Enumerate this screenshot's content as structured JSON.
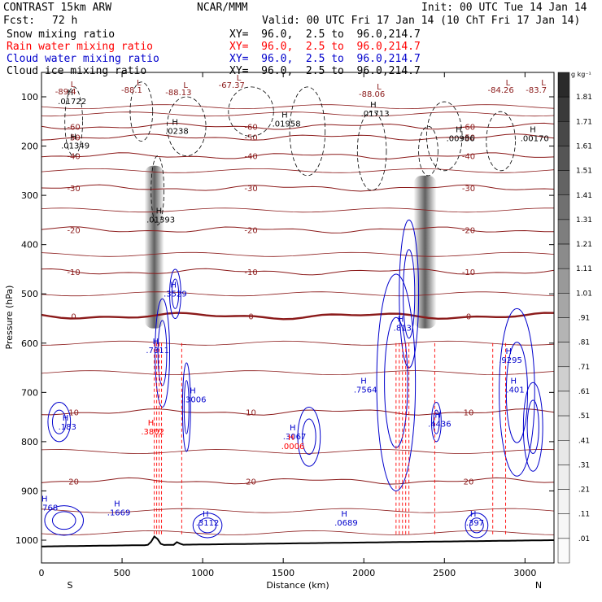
{
  "header": {
    "model": "CONTRAST 15km ARW",
    "center": "NCAR/MMM",
    "init": "Init: 00 UTC Tue 14 Jan 14",
    "fcst_label": "Fcst:",
    "fcst_value": "72 h",
    "valid": "Valid: 00 UTC Fri 17 Jan 14 (10 ChT Fri 17 Jan 14)"
  },
  "fields": [
    {
      "name": "Snow mixing ratio",
      "xy": "XY=  96.0,  2.5 to  96.0,214.7",
      "color": "#000000"
    },
    {
      "name": "Rain water mixing ratio",
      "xy": "XY=  96.0,  2.5 to  96.0,214.7",
      "color": "#ff0000"
    },
    {
      "name": "Cloud water mixing ratio",
      "xy": "XY=  96.0,  2.5 to  96.0,214.7",
      "color": "#0000cc"
    },
    {
      "name": "Cloud ice mixing ratio",
      "xy": "XY=  96.0,  2.5 to  96.0,214.7",
      "color": "#000000"
    }
  ],
  "chart_data": {
    "type": "cross-section",
    "xlabel": "Distance (km)",
    "ylabel": "Pressure (hPa)",
    "x_ticks": [
      "0",
      "500",
      "1000",
      "1500",
      "2000",
      "2500",
      "3000"
    ],
    "y_ticks": [
      "100",
      "200",
      "300",
      "400",
      "500",
      "600",
      "700",
      "800",
      "900",
      "1000"
    ],
    "xlim": [
      0,
      3180
    ],
    "ylim": [
      1030,
      50
    ],
    "x_end_labels": {
      "left": "S",
      "right": "N"
    },
    "colorbar": {
      "unit": "g kg⁻¹",
      "labels": [
        "1.81",
        "1.71",
        "1.61",
        "1.51",
        "1.41",
        "1.31",
        "1.21",
        "1.11",
        "1.01",
        ".91",
        ".81",
        ".71",
        ".61",
        ".51",
        ".41",
        ".31",
        ".21",
        ".11",
        ".01"
      ],
      "colors": [
        "#3a3a3a",
        "#484848",
        "#555555",
        "#636363",
        "#707070",
        "#7e7e7e",
        "#8b8b8b",
        "#999999",
        "#a6a6a6",
        "#b4b4b4",
        "#c1c1c1",
        "#cfcfcf",
        "#d8d8d8",
        "#e0e0e0",
        "#e8e8e8",
        "#eeeeee",
        "#f3f3f3",
        "#f7f7f7",
        "#fbfbfb"
      ]
    },
    "temperature_isotherms": [
      {
        "label": "-60",
        "p": 160
      },
      {
        "label": "-50",
        "p": 182
      },
      {
        "label": "-40",
        "p": 220
      },
      {
        "label": "-30",
        "p": 285
      },
      {
        "label": "-20",
        "p": 370
      },
      {
        "label": "-10",
        "p": 455
      },
      {
        "label": "0",
        "p": 545
      },
      {
        "label": "10",
        "p": 740
      },
      {
        "label": "20",
        "p": 880
      }
    ],
    "cloud_ice_max": [
      {
        "label": ".01722",
        "x": 190,
        "p": 115
      },
      {
        "label": ".01349",
        "x": 210,
        "p": 205
      },
      {
        "label": ".0238",
        "x": 840,
        "p": 175
      },
      {
        "label": ".01393",
        "x": 740,
        "p": 355
      },
      {
        "label": ".01958",
        "x": 1520,
        "p": 160
      },
      {
        "label": ".01713",
        "x": 2070,
        "p": 140
      },
      {
        "label": ".00986",
        "x": 2600,
        "p": 190
      },
      {
        "label": ".00170",
        "x": 3060,
        "p": 190
      }
    ],
    "cloud_water_max": [
      {
        "label": ".3529",
        "x": 830,
        "p": 505
      },
      {
        "label": ".7311",
        "x": 720,
        "p": 620
      },
      {
        "label": ".3006",
        "x": 950,
        "p": 720
      },
      {
        "label": ".3067",
        "x": 1570,
        "p": 795
      },
      {
        "label": ".7564",
        "x": 2010,
        "p": 700
      },
      {
        "label": ".813",
        "x": 2240,
        "p": 575
      },
      {
        "label": ".4436",
        "x": 2470,
        "p": 770
      },
      {
        "label": ".9295",
        "x": 2910,
        "p": 640
      },
      {
        "label": ".1669",
        "x": 480,
        "p": 950
      },
      {
        "label": ".2768",
        "x": 30,
        "p": 940
      },
      {
        "label": ".183",
        "x": 160,
        "p": 775
      },
      {
        "label": ".3112",
        "x": 1030,
        "p": 970
      },
      {
        "label": ".0689",
        "x": 1890,
        "p": 970
      },
      {
        "label": ".397",
        "x": 2690,
        "p": 970
      },
      {
        "label": ".401",
        "x": 2940,
        "p": 700
      }
    ],
    "rain_max": [
      {
        "label": ".3802",
        "x": 690,
        "p": 785
      },
      {
        "label": ".0006",
        "x": 1560,
        "p": 815
      }
    ],
    "extrema_lows": [
      {
        "label": "-89.4",
        "x": 150,
        "p": 95
      },
      {
        "label": "-88.1",
        "x": 560,
        "p": 92
      },
      {
        "label": "-88.13",
        "x": 850,
        "p": 97
      },
      {
        "label": "-67.37",
        "x": 1180,
        "p": 82
      },
      {
        "label": "-88.06",
        "x": 2050,
        "p": 100
      },
      {
        "label": "-84.26",
        "x": 2850,
        "p": 92
      },
      {
        "label": "-83.7",
        "x": 3070,
        "p": 92
      }
    ]
  }
}
